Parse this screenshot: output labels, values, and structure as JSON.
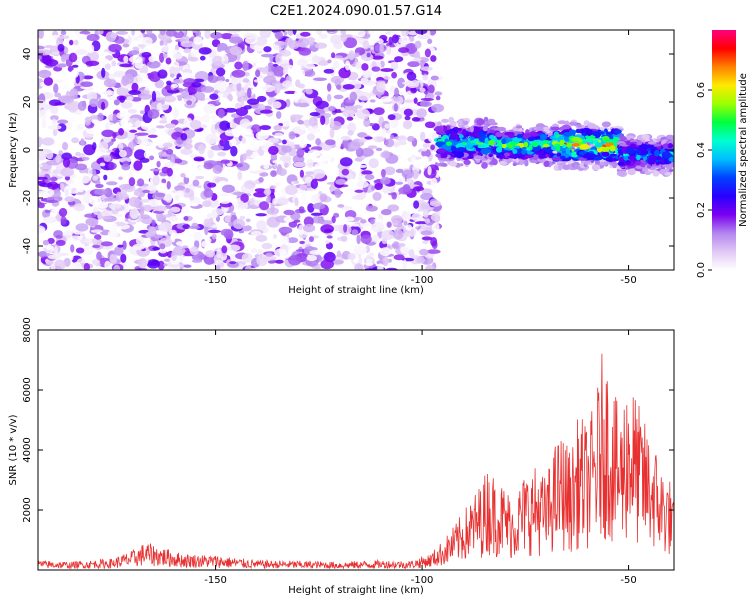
{
  "figure": {
    "title": "C2E1.2024.090.01.57.G14"
  },
  "chart_data": [
    {
      "type": "heatmap",
      "xlabel": "Height of straight line (km)",
      "ylabel": "Frequency (Hz)",
      "xlim": [
        -193,
        -39
      ],
      "ylim": [
        -50,
        50
      ],
      "xticks": [
        -150,
        -100,
        -50
      ],
      "yticks": [
        -40,
        -20,
        0,
        20,
        40
      ],
      "colorbar": {
        "label": "Normalized spectral amplitude",
        "ticks": [
          0.0,
          0.2,
          0.4,
          0.6
        ],
        "range": [
          0.0,
          0.8
        ],
        "colormap": [
          "#ffffff",
          "#e0c8f5",
          "#b385f0",
          "#7a00f0",
          "#2a00ff",
          "#0040ff",
          "#00bfff",
          "#00ffd0",
          "#00ff40",
          "#9bff00",
          "#ffea00",
          "#ff8000",
          "#ff0000",
          "#ff0080"
        ]
      },
      "noise_region": {
        "x_from": -193,
        "x_to": -96,
        "amplitude_range": [
          0.0,
          0.12
        ]
      },
      "signal_band": [
        {
          "x_from": -96,
          "x_to": -82,
          "freq_center": 3,
          "freq_halfwidth": 6,
          "peak_amplitude": 0.45
        },
        {
          "x_from": -82,
          "x_to": -68,
          "freq_center": 2,
          "freq_halfwidth": 5,
          "peak_amplitude": 0.5
        },
        {
          "x_from": -68,
          "x_to": -52,
          "freq_center": 2,
          "freq_halfwidth": 6,
          "peak_amplitude": 0.65
        },
        {
          "x_from": -52,
          "x_to": -39,
          "freq_center": -2,
          "freq_halfwidth": 5,
          "peak_amplitude": 0.4
        }
      ]
    },
    {
      "type": "line",
      "xlabel": "Height of straight line (km)",
      "ylabel": "SNR (10 * v/v)",
      "xlim": [
        -193,
        -39
      ],
      "ylim": [
        0,
        8000
      ],
      "xticks": [
        -150,
        -100,
        -50
      ],
      "yticks": [
        2000,
        4000,
        6000,
        8000
      ],
      "line_color": "#e83030",
      "series": [
        {
          "x": [
            -193,
            -185,
            -175,
            -170,
            -167,
            -163,
            -158,
            -150,
            -140,
            -130,
            -120,
            -110,
            -103,
            -98,
            -95,
            -92,
            -89,
            -86,
            -84,
            -82,
            -80,
            -78,
            -75,
            -72,
            -70,
            -68,
            -66,
            -64,
            -62,
            -60,
            -58,
            -56,
            -54,
            -52,
            -50,
            -48,
            -46,
            -44,
            -42,
            -40,
            -39
          ],
          "values": [
            300,
            250,
            350,
            600,
            850,
            700,
            500,
            450,
            300,
            280,
            250,
            300,
            280,
            500,
            900,
            1400,
            2000,
            2600,
            3200,
            2800,
            2600,
            2200,
            3000,
            3200,
            2800,
            3800,
            4200,
            3600,
            4800,
            4400,
            5200,
            7000,
            5600,
            4800,
            6200,
            5200,
            4500,
            4000,
            3200,
            2800,
            2000
          ]
        }
      ]
    }
  ]
}
